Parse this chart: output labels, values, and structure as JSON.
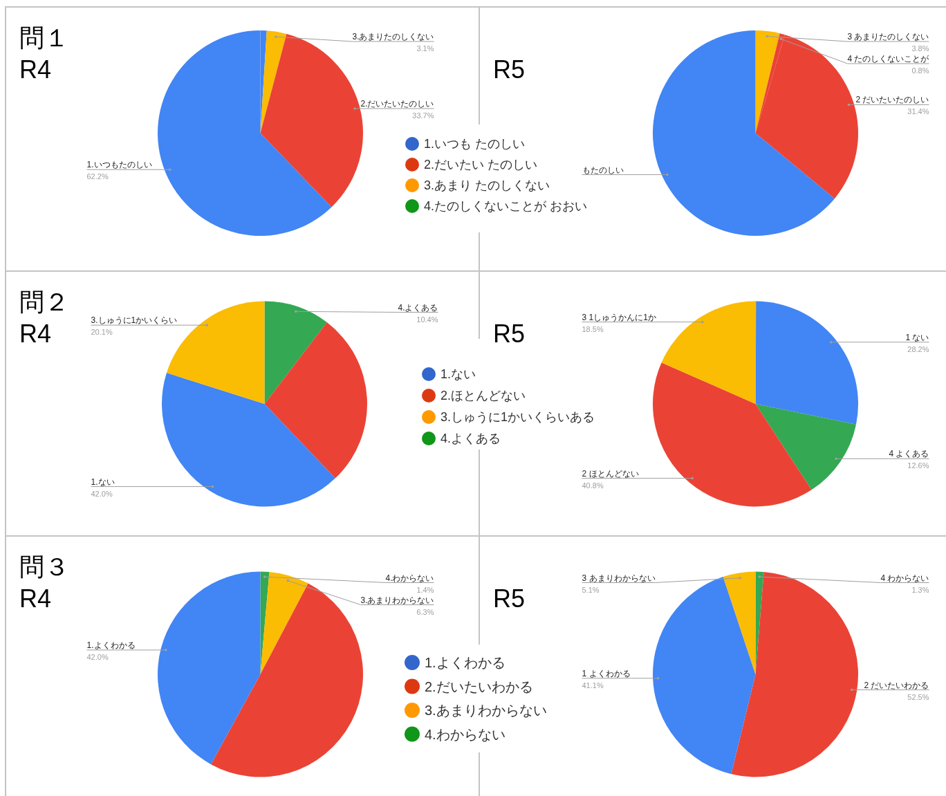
{
  "chart_data": [
    {
      "type": "pie",
      "title": "問１",
      "subtitle": "R4",
      "categories": [
        null,
        "3.あまりたのしくない",
        "2.だいたいたのしい",
        "1.いつもたのしい"
      ],
      "values": [
        1.0,
        3.1,
        33.7,
        62.2
      ],
      "value_labels": [
        null,
        "3.1%",
        "33.7%",
        "62.2%"
      ],
      "colors": [
        "#4285f4",
        "#fbbc04",
        "#ea4335",
        "#4285f4"
      ]
    },
    {
      "type": "other",
      "series": [
        {
          "name": "1.いつも たのしい",
          "color": "#3366cc"
        },
        {
          "name": "2.だいたい たのしい",
          "color": "#dc3912"
        },
        {
          "name": "3.あまり たのしくない",
          "color": "#ff9900"
        },
        {
          "name": "4.たのしくないことが おおい",
          "color": "#109618"
        }
      ]
    },
    {
      "type": "pie",
      "title": "R5",
      "categories": [
        "3 あまりたのしくない",
        "4 たのしくないことが",
        "2 だいたいたのしい",
        "もたのしい"
      ],
      "values": [
        3.8,
        0.8,
        31.4,
        64.0
      ],
      "value_labels": [
        "3.8%",
        "0.8%",
        "31.4%",
        null
      ],
      "colors": [
        "#fbbc04",
        "#ea4335",
        "#ea4335",
        "#4285f4"
      ]
    },
    {
      "type": "pie",
      "title": "問２",
      "subtitle": "R4",
      "categories": [
        "4.よくある",
        null,
        "1.ない",
        "3.しゅうに1かいくらい"
      ],
      "values": [
        10.4,
        27.5,
        42.0,
        20.1
      ],
      "value_labels": [
        "10.4%",
        null,
        "42.0%",
        "20.1%"
      ],
      "colors": [
        "#34a853",
        "#ea4335",
        "#4285f4",
        "#fbbc04"
      ]
    },
    {
      "type": "other",
      "series": [
        {
          "name": "1.ない",
          "color": "#3366cc"
        },
        {
          "name": "2.ほとんどない",
          "color": "#dc3912"
        },
        {
          "name": "3.しゅうに1かいくらいある",
          "color": "#ff9900"
        },
        {
          "name": "4.よくある",
          "color": "#109618"
        }
      ]
    },
    {
      "type": "pie",
      "title": "R5",
      "categories": [
        "1 ない",
        "4 よくある",
        "2 ほとんどない",
        "3 1しゅうかんに1か"
      ],
      "values": [
        28.2,
        12.6,
        40.8,
        18.5
      ],
      "value_labels": [
        "28.2%",
        "12.6%",
        "40.8%",
        "18.5%"
      ],
      "colors": [
        "#4285f4",
        "#34a853",
        "#ea4335",
        "#fbbc04"
      ]
    },
    {
      "type": "pie",
      "title": "問３",
      "subtitle": "R4",
      "categories": [
        "4.わからない",
        "3.あまりわからない",
        null,
        "1.よくわかる"
      ],
      "values": [
        1.4,
        6.3,
        50.3,
        42.0
      ],
      "value_labels": [
        "1.4%",
        "6.3%",
        null,
        "42.0%"
      ],
      "colors": [
        "#34a853",
        "#fbbc04",
        "#ea4335",
        "#4285f4"
      ]
    },
    {
      "type": "other",
      "series": [
        {
          "name": "1.よくわかる",
          "color": "#3366cc"
        },
        {
          "name": "2.だいたいわかる",
          "color": "#dc3912"
        },
        {
          "name": "3.あまりわからない",
          "color": "#ff9900"
        },
        {
          "name": "4.わからない",
          "color": "#109618"
        }
      ]
    },
    {
      "type": "pie",
      "title": "R5",
      "categories": [
        "4 わからない",
        "2 だいたいわかる",
        "1 よくわかる",
        "3 あまりわからない"
      ],
      "values": [
        1.3,
        52.5,
        41.1,
        5.1
      ],
      "value_labels": [
        "1.3%",
        "52.5%",
        "41.1%",
        "5.1%"
      ],
      "colors": [
        "#34a853",
        "#ea4335",
        "#4285f4",
        "#fbbc04"
      ]
    }
  ]
}
